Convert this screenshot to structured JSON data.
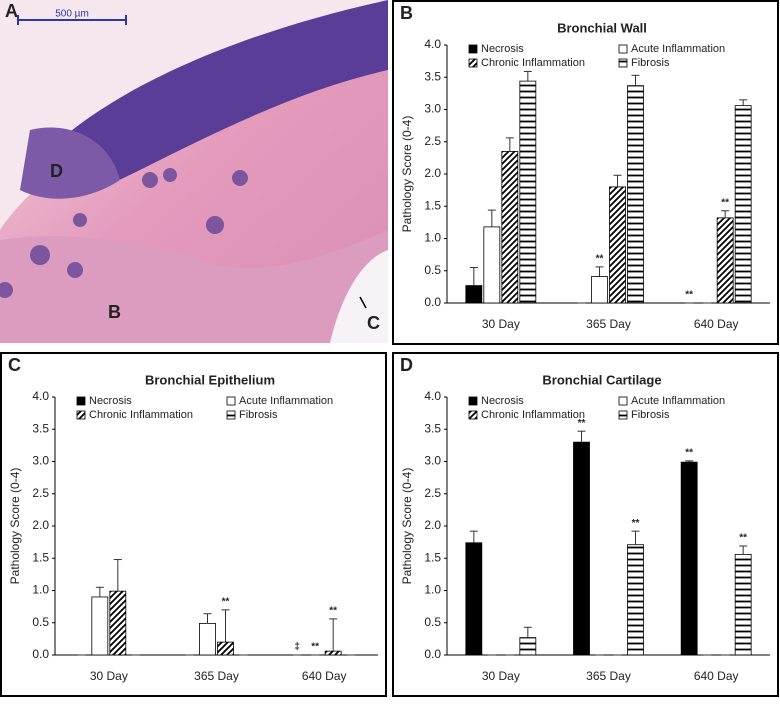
{
  "image": {
    "panel_label": "A",
    "scale_bar": "500 µm",
    "markers": [
      "D",
      "B",
      "C"
    ]
  },
  "chart_data": [
    {
      "type": "bar",
      "panel_label": "B",
      "title": "Bronchial Wall",
      "y_label": "Pathology Score (0-4)",
      "categories": [
        "30 Day",
        "365 Day",
        "640 Day"
      ],
      "ylim": [
        0,
        4
      ],
      "yticks": [
        {
          "value": 0,
          "label": "0.0"
        },
        0.5,
        {
          "value": 1,
          "label": "1.0"
        },
        1.5,
        {
          "value": 2,
          "label": "2.0"
        },
        2.5,
        {
          "value": 3,
          "label": "3.0"
        },
        3.5,
        {
          "value": 4,
          "label": "4.0"
        }
      ],
      "grid": false,
      "series": [
        {
          "name": "Necrosis",
          "color": "#000000",
          "pattern": "solid",
          "values": [
            0.27,
            0,
            0
          ],
          "errors": [
            0.28,
            0,
            0
          ],
          "annotations": [
            null,
            null,
            "**"
          ]
        },
        {
          "name": "Acute Inflammation",
          "color": "#ffffff",
          "pattern": "solid",
          "values": [
            1.18,
            0.41,
            0
          ],
          "errors": [
            0.26,
            0.15,
            0
          ],
          "annotations": [
            null,
            "**",
            null
          ]
        },
        {
          "name": "Chronic Inflammation",
          "color": "#ffffff",
          "pattern": "diagonal",
          "values": [
            2.35,
            1.8,
            1.32
          ],
          "errors": [
            0.21,
            0.18,
            0.11
          ],
          "annotations": [
            null,
            null,
            "**"
          ]
        },
        {
          "name": "Fibrosis",
          "color": "#ffffff",
          "pattern": "horizontal",
          "values": [
            3.44,
            3.37,
            3.06
          ],
          "errors": [
            0.15,
            0.16,
            0.09
          ],
          "annotations": [
            null,
            null,
            null
          ]
        }
      ]
    },
    {
      "type": "bar",
      "panel_label": "C",
      "title": "Bronchial Epithelium",
      "y_label": "Pathology Score (0-4)",
      "categories": [
        "30 Day",
        "365 Day",
        "640 Day"
      ],
      "ylim": [
        0,
        4
      ],
      "yticks": [
        {
          "value": 0,
          "label": "0.0"
        },
        0.5,
        {
          "value": 1,
          "label": "1.0"
        },
        1.5,
        {
          "value": 2,
          "label": "2.0"
        },
        2.5,
        {
          "value": 3,
          "label": "3.0"
        },
        3.5,
        {
          "value": 4,
          "label": "4.0"
        }
      ],
      "grid": false,
      "series": [
        {
          "name": "Necrosis",
          "color": "#000000",
          "pattern": "solid",
          "values": [
            0,
            0,
            0
          ],
          "errors": [
            0,
            0,
            0
          ],
          "annotations": [
            null,
            null,
            "‡"
          ]
        },
        {
          "name": "Acute Inflammation",
          "color": "#ffffff",
          "pattern": "solid",
          "values": [
            0.9,
            0.49,
            0
          ],
          "errors": [
            0.15,
            0.15,
            0
          ],
          "annotations": [
            null,
            null,
            "**"
          ]
        },
        {
          "name": "Chronic Inflammation",
          "color": "#ffffff",
          "pattern": "diagonal",
          "values": [
            0.99,
            0.2,
            0.06
          ],
          "errors": [
            0.49,
            0.5,
            0.5
          ],
          "annotations": [
            null,
            "**",
            "**"
          ]
        },
        {
          "name": "Fibrosis",
          "color": "#ffffff",
          "pattern": "horizontal",
          "values": [
            0,
            0,
            0
          ],
          "errors": [
            0,
            0,
            0
          ],
          "annotations": [
            null,
            null,
            null
          ]
        }
      ]
    },
    {
      "type": "bar",
      "panel_label": "D",
      "title": "Bronchial Cartilage",
      "y_label": "Pathology Score (0-4)",
      "categories": [
        "30 Day",
        "365 Day",
        "640 Day"
      ],
      "ylim": [
        0,
        4
      ],
      "yticks": [
        {
          "value": 0,
          "label": "0.0"
        },
        0.5,
        {
          "value": 1,
          "label": "1.0"
        },
        1.5,
        {
          "value": 2,
          "label": "2.0"
        },
        2.5,
        {
          "value": 3,
          "label": "3.0"
        },
        3.5,
        {
          "value": 4,
          "label": "4.0"
        }
      ],
      "grid": false,
      "series": [
        {
          "name": "Necrosis",
          "color": "#000000",
          "pattern": "solid",
          "values": [
            1.74,
            3.3,
            2.99
          ],
          "errors": [
            0.18,
            0.17,
            0.02
          ],
          "annotations": [
            null,
            "**",
            "**"
          ]
        },
        {
          "name": "Acute Inflammation",
          "color": "#ffffff",
          "pattern": "solid",
          "values": [
            0,
            0,
            0
          ],
          "errors": [
            0,
            0,
            0
          ],
          "annotations": [
            null,
            null,
            null
          ]
        },
        {
          "name": "Chronic Inflammation",
          "color": "#ffffff",
          "pattern": "diagonal",
          "values": [
            0,
            0,
            0
          ],
          "errors": [
            0,
            0,
            0
          ],
          "annotations": [
            null,
            null,
            null
          ]
        },
        {
          "name": "Fibrosis",
          "color": "#ffffff",
          "pattern": "horizontal",
          "values": [
            0.27,
            1.71,
            1.56
          ],
          "errors": [
            0.16,
            0.21,
            0.13
          ],
          "annotations": [
            null,
            "**",
            "**"
          ]
        }
      ]
    }
  ]
}
